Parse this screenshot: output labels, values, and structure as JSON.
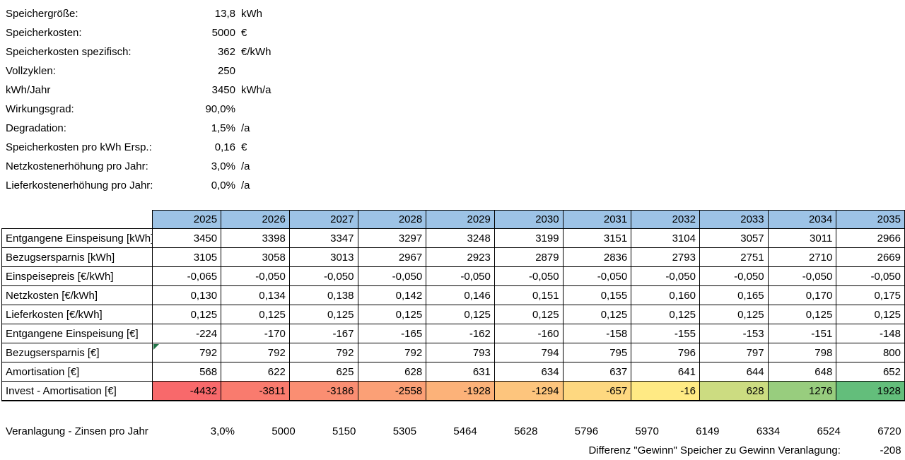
{
  "colors": {
    "header_fill": "#9DC3E6",
    "grid_border": "#000000",
    "error_indicator": "#217346",
    "invest_scale_min": "#F8696B",
    "invest_scale_mid": "#FFEB84",
    "invest_scale_max": "#63BE7B"
  },
  "parameters": [
    {
      "label": "Speichergröße:",
      "value": "13,8",
      "unit": "kWh"
    },
    {
      "label": "Speicherkosten:",
      "value": "5000",
      "unit": "€"
    },
    {
      "label": "Speicherkosten spezifisch:",
      "value": "362",
      "unit": "€/kWh"
    },
    {
      "label": "Vollzyklen:",
      "value": "250",
      "unit": ""
    },
    {
      "label": "kWh/Jahr",
      "value": "3450",
      "unit": "kWh/a"
    },
    {
      "label": "Wirkungsgrad:",
      "value": "90,0%",
      "unit": ""
    },
    {
      "label": "Degradation:",
      "value": "1,5%",
      "unit": "/a"
    },
    {
      "label": "Speicherkosten pro kWh Ersp.:",
      "value": "0,16",
      "unit": "€"
    },
    {
      "label": "Netzkostenerhöhung pro Jahr:",
      "value": "3,0%",
      "unit": "/a"
    },
    {
      "label": "Lieferkostenerhöhung pro Jahr:",
      "value": "0,0%",
      "unit": "/a"
    }
  ],
  "table": {
    "years": [
      "2025",
      "2026",
      "2027",
      "2028",
      "2029",
      "2030",
      "2031",
      "2032",
      "2033",
      "2034",
      "2035"
    ],
    "rows": [
      {
        "label": "Entgangene Einspeisung [kWh]",
        "values": [
          "3450",
          "3398",
          "3347",
          "3297",
          "3248",
          "3199",
          "3151",
          "3104",
          "3057",
          "3011",
          "2966"
        ]
      },
      {
        "label": "Bezugsersparnis [kWh]",
        "values": [
          "3105",
          "3058",
          "3013",
          "2967",
          "2923",
          "2879",
          "2836",
          "2793",
          "2751",
          "2710",
          "2669"
        ]
      },
      {
        "label": "Einspeisepreis [€/kWh]",
        "values": [
          "-0,065",
          "-0,050",
          "-0,050",
          "-0,050",
          "-0,050",
          "-0,050",
          "-0,050",
          "-0,050",
          "-0,050",
          "-0,050",
          "-0,050"
        ]
      },
      {
        "label": "Netzkosten [€/kWh]",
        "values": [
          "0,130",
          "0,134",
          "0,138",
          "0,142",
          "0,146",
          "0,151",
          "0,155",
          "0,160",
          "0,165",
          "0,170",
          "0,175"
        ]
      },
      {
        "label": "Lieferkosten [€/kWh]",
        "values": [
          "0,125",
          "0,125",
          "0,125",
          "0,125",
          "0,125",
          "0,125",
          "0,125",
          "0,125",
          "0,125",
          "0,125",
          "0,125"
        ]
      },
      {
        "label": "Entgangene Einspeisung [€]",
        "values": [
          "-224",
          "-170",
          "-167",
          "-165",
          "-162",
          "-160",
          "-158",
          "-155",
          "-153",
          "-151",
          "-148"
        ]
      },
      {
        "label": "Bezugsersparnis [€]",
        "values": [
          "792",
          "792",
          "792",
          "792",
          "793",
          "794",
          "795",
          "796",
          "797",
          "798",
          "800"
        ],
        "error_indicator_first_cell": true
      },
      {
        "label": "Amortisation [€]",
        "values": [
          "568",
          "622",
          "625",
          "628",
          "631",
          "634",
          "637",
          "641",
          "644",
          "648",
          "652"
        ]
      },
      {
        "label": "Invest - Amortisation [€]",
        "values": [
          "-4432",
          "-3811",
          "-3186",
          "-2558",
          "-1928",
          "-1294",
          "-657",
          "-16",
          "628",
          "1276",
          "1928"
        ],
        "cell_colors": [
          "#F8696B",
          "#F97B6E",
          "#FA8E72",
          "#FBA076",
          "#FCB279",
          "#FDC57D",
          "#FED880",
          "#FFEA84",
          "#CCDC81",
          "#98CD7E",
          "#63BE7B"
        ]
      }
    ]
  },
  "veranlagung": {
    "label": "Veranlagung - Zinsen pro Jahr",
    "rate": "3,0%",
    "values": [
      "5000",
      "5150",
      "5305",
      "5464",
      "5628",
      "5796",
      "5970",
      "6149",
      "6334",
      "6524",
      "6720"
    ]
  },
  "difference": {
    "label": "Differenz \"Gewinn\" Speicher zu Gewinn Veranlagung:",
    "value": "-208"
  }
}
